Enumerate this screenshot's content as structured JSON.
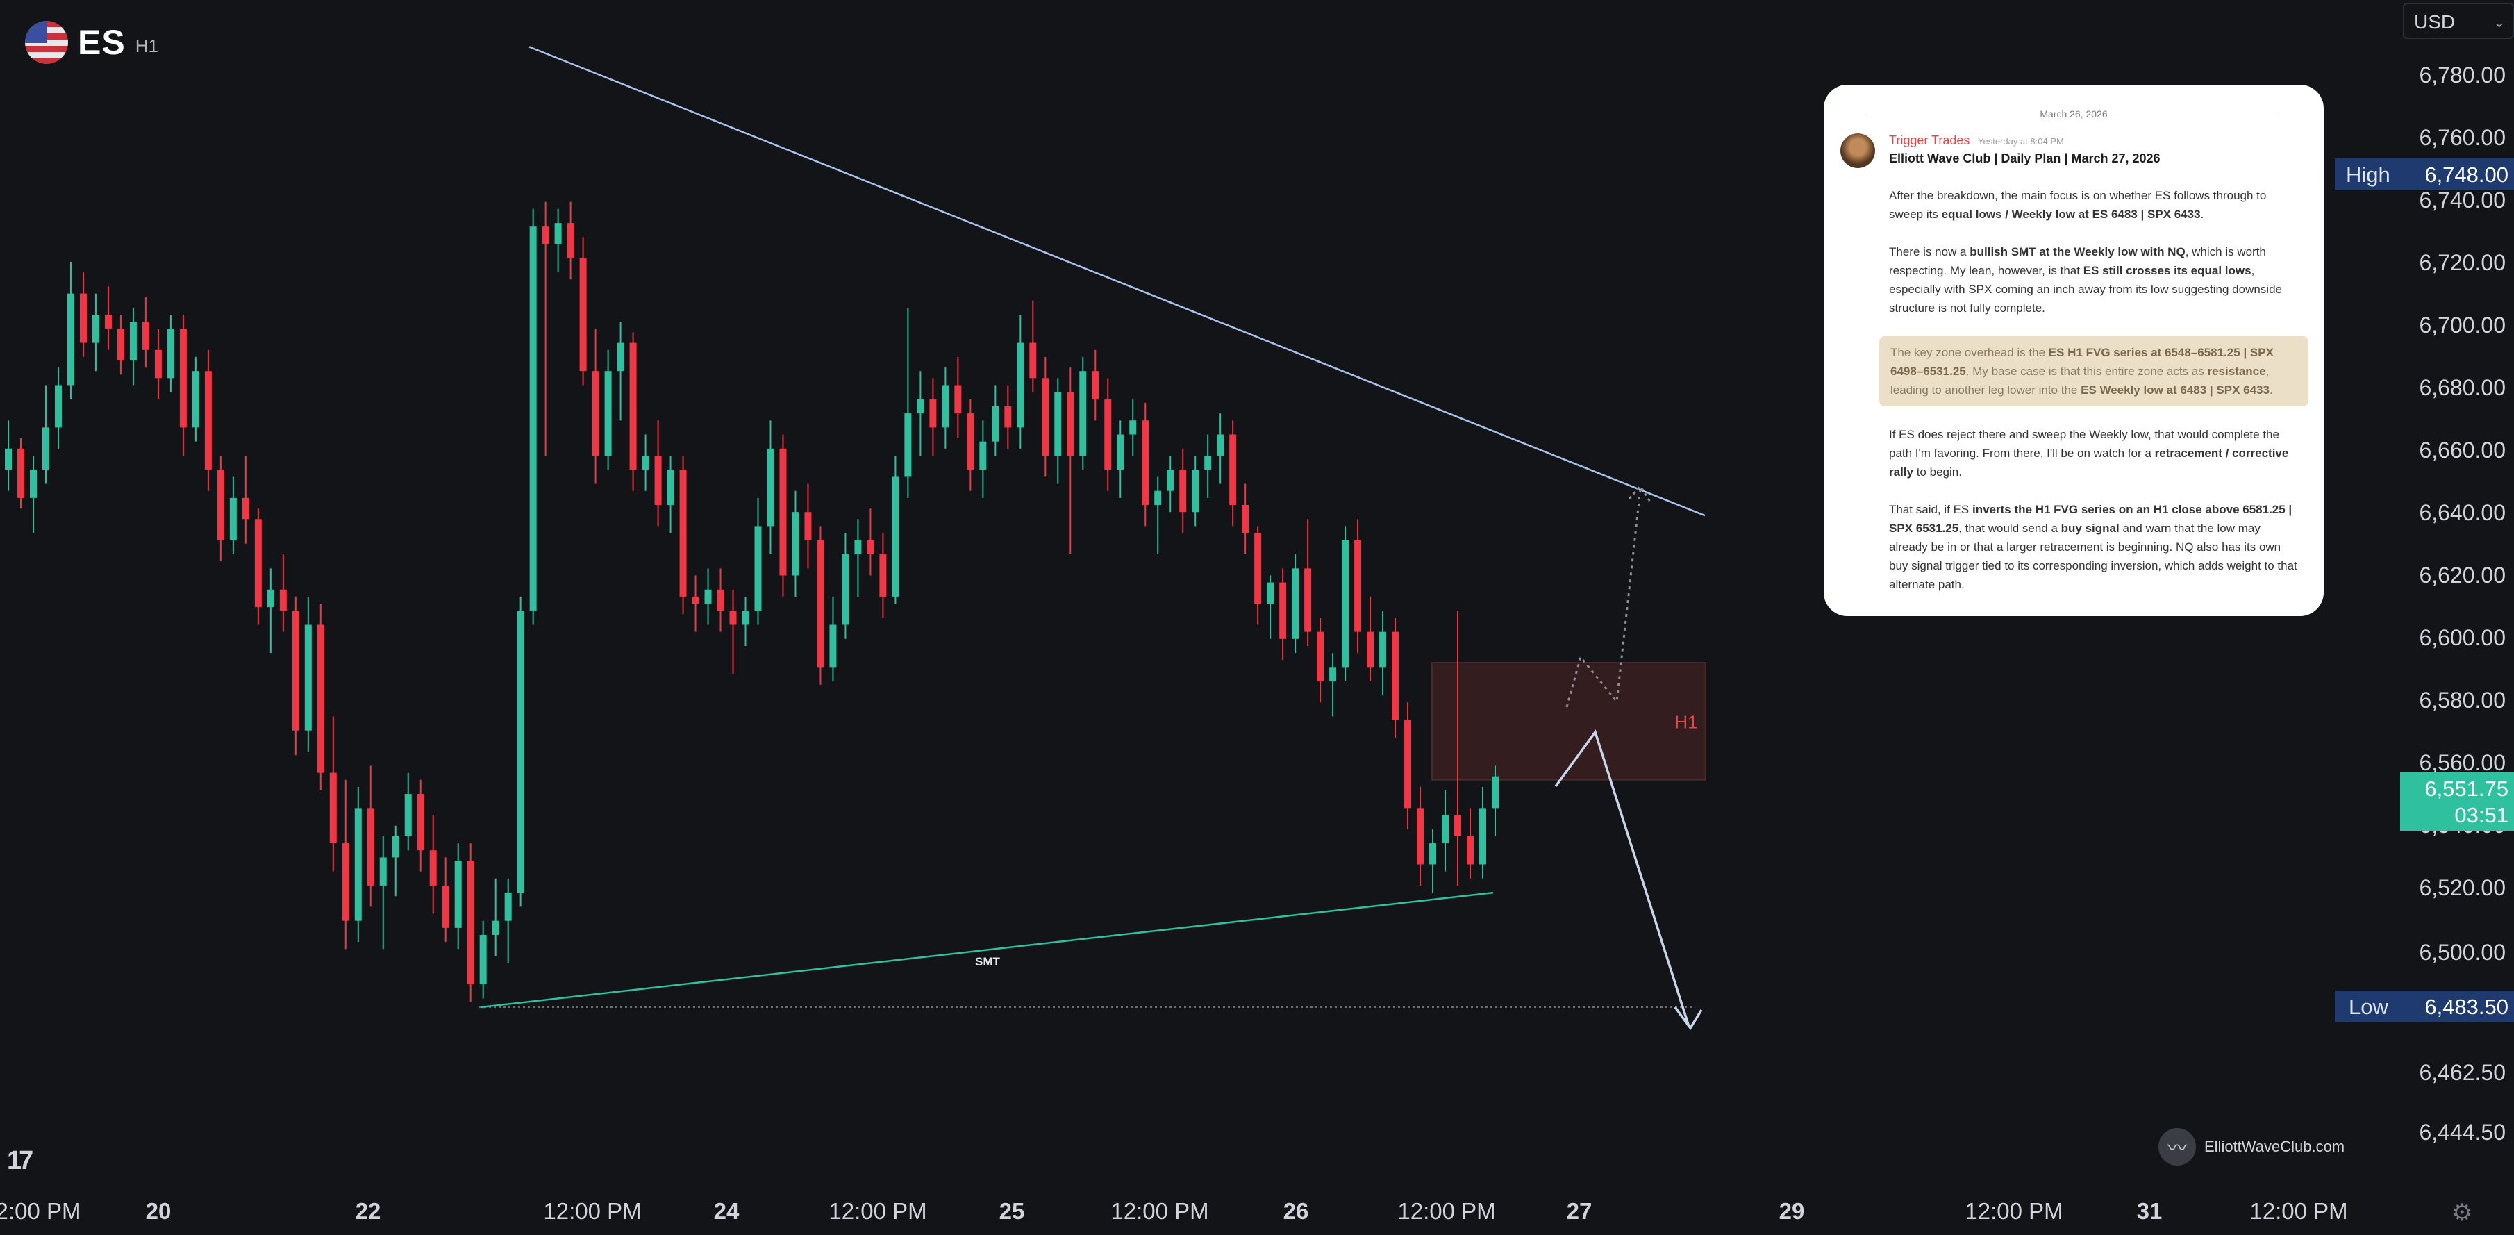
{
  "header": {
    "symbol": "ES",
    "timeframe": "H1"
  },
  "currency": {
    "selected": "USD"
  },
  "colors": {
    "up": "#2fc0a0",
    "down": "#f23645",
    "background": "#131417",
    "axis_text": "#d1d4dc",
    "trendline_upper": "#a9c2ea",
    "trendline_lower": "#2fc0a0",
    "fvg_zone": "#3a1f20",
    "fvg_border": "#5a2c2e",
    "fvg_label": "#e0484c",
    "high_badge": "#1e3a6e",
    "price_badge": "#2fc0a0",
    "projection_path": "#c9d6ea",
    "alt_path": "#8c8f96"
  },
  "chart_data": {
    "type": "candlestick",
    "title": "",
    "y_ticks": [
      "6,780.00",
      "6,760.00",
      "6,740.00",
      "6,720.00",
      "6,700.00",
      "6,680.00",
      "6,660.00",
      "6,640.00",
      "6,620.00",
      "6,600.00",
      "6,580.00",
      "6,560.00",
      "6,540.00",
      "6,520.00",
      "6,500.00",
      "6,462.50",
      "6,444.50"
    ],
    "x_ticks": [
      {
        "label": "2:00 PM",
        "bold": false
      },
      {
        "label": "20",
        "bold": true
      },
      {
        "label": "22",
        "bold": true
      },
      {
        "label": "12:00 PM",
        "bold": false
      },
      {
        "label": "24",
        "bold": true
      },
      {
        "label": "12:00 PM",
        "bold": false
      },
      {
        "label": "25",
        "bold": true
      },
      {
        "label": "12:00 PM",
        "bold": false
      },
      {
        "label": "26",
        "bold": true
      },
      {
        "label": "12:00 PM",
        "bold": false
      },
      {
        "label": "27",
        "bold": true
      },
      {
        "label": "29",
        "bold": true
      },
      {
        "label": "12:00 PM",
        "bold": false
      },
      {
        "label": "31",
        "bold": true
      },
      {
        "label": "12:00 PM",
        "bold": false
      }
    ],
    "ylim": [
      6438,
      6787
    ],
    "price_badges": {
      "high": {
        "label": "High",
        "value": "6,748.00"
      },
      "low": {
        "label": "Low",
        "value": "6,483.50"
      },
      "last": {
        "value": "6,551.75",
        "countdown": "03:51"
      }
    },
    "fvg_zone": {
      "label": "H1",
      "top": 6581.25,
      "bottom": 6548
    },
    "smt_label": "SMT",
    "upper_trendline": {
      "from": {
        "bar": 76,
        "price": 6756
      },
      "to": {
        "bar": 245,
        "price": 6623
      }
    },
    "lower_trendline": {
      "from": {
        "bar": 69,
        "price": 6483.5
      },
      "to": {
        "bar": 214,
        "price": 6516
      }
    },
    "low_line_price": 6483.5,
    "candles": [
      [
        6636,
        6650,
        6630,
        6642
      ],
      [
        6642,
        6645,
        6625,
        6628
      ],
      [
        6628,
        6640,
        6618,
        6636
      ],
      [
        6636,
        6660,
        6632,
        6648
      ],
      [
        6648,
        6665,
        6642,
        6660
      ],
      [
        6660,
        6695,
        6656,
        6686
      ],
      [
        6686,
        6692,
        6668,
        6672
      ],
      [
        6672,
        6686,
        6664,
        6680
      ],
      [
        6680,
        6688,
        6670,
        6676
      ],
      [
        6676,
        6680,
        6663,
        6667
      ],
      [
        6667,
        6682,
        6660,
        6678
      ],
      [
        6678,
        6685,
        6665,
        6670
      ],
      [
        6670,
        6676,
        6656,
        6662
      ],
      [
        6662,
        6680,
        6658,
        6676
      ],
      [
        6676,
        6680,
        6640,
        6648
      ],
      [
        6648,
        6668,
        6644,
        6664
      ],
      [
        6664,
        6670,
        6630,
        6636
      ],
      [
        6636,
        6640,
        6610,
        6616
      ],
      [
        6616,
        6634,
        6612,
        6628
      ],
      [
        6628,
        6640,
        6615,
        6622
      ],
      [
        6622,
        6625,
        6592,
        6597
      ],
      [
        6597,
        6608,
        6584,
        6602
      ],
      [
        6602,
        6612,
        6590,
        6596
      ],
      [
        6596,
        6600,
        6555,
        6562
      ],
      [
        6562,
        6600,
        6556,
        6592
      ],
      [
        6592,
        6598,
        6545,
        6550
      ],
      [
        6550,
        6566,
        6522,
        6530
      ],
      [
        6530,
        6548,
        6500,
        6508
      ],
      [
        6508,
        6546,
        6502,
        6540
      ],
      [
        6540,
        6552,
        6512,
        6518
      ],
      [
        6518,
        6532,
        6500,
        6526
      ],
      [
        6526,
        6535,
        6515,
        6532
      ],
      [
        6532,
        6550,
        6528,
        6544
      ],
      [
        6544,
        6548,
        6522,
        6528
      ],
      [
        6528,
        6538,
        6510,
        6518
      ],
      [
        6518,
        6526,
        6502,
        6506
      ],
      [
        6506,
        6530,
        6500,
        6525
      ],
      [
        6525,
        6530,
        6485,
        6490
      ],
      [
        6490,
        6508,
        6486,
        6504
      ],
      [
        6504,
        6520,
        6498,
        6508
      ],
      [
        6508,
        6520,
        6496,
        6516
      ],
      [
        6516,
        6600,
        6512,
        6596
      ],
      [
        6596,
        6710,
        6592,
        6705
      ],
      [
        6705,
        6712,
        6640,
        6700
      ],
      [
        6700,
        6710,
        6692,
        6706
      ],
      [
        6706,
        6712,
        6690,
        6696
      ],
      [
        6696,
        6702,
        6660,
        6664
      ],
      [
        6664,
        6676,
        6632,
        6640
      ],
      [
        6640,
        6670,
        6636,
        6664
      ],
      [
        6664,
        6678,
        6650,
        6672
      ],
      [
        6672,
        6675,
        6630,
        6636
      ],
      [
        6636,
        6646,
        6630,
        6640
      ],
      [
        6640,
        6650,
        6620,
        6626
      ],
      [
        6626,
        6640,
        6618,
        6636
      ],
      [
        6636,
        6640,
        6595,
        6600
      ],
      [
        6600,
        6606,
        6590,
        6598
      ],
      [
        6598,
        6608,
        6592,
        6602
      ],
      [
        6602,
        6608,
        6590,
        6596
      ],
      [
        6596,
        6602,
        6578,
        6592
      ],
      [
        6592,
        6600,
        6586,
        6596
      ],
      [
        6596,
        6628,
        6592,
        6620
      ],
      [
        6620,
        6650,
        6612,
        6642
      ],
      [
        6642,
        6646,
        6600,
        6606
      ],
      [
        6606,
        6630,
        6600,
        6624
      ],
      [
        6624,
        6632,
        6608,
        6616
      ],
      [
        6616,
        6620,
        6575,
        6580
      ],
      [
        6580,
        6600,
        6576,
        6592
      ],
      [
        6592,
        6618,
        6588,
        6612
      ],
      [
        6612,
        6622,
        6600,
        6616
      ],
      [
        6616,
        6625,
        6606,
        6612
      ],
      [
        6612,
        6618,
        6594,
        6600
      ],
      [
        6600,
        6640,
        6598,
        6634
      ],
      [
        6634,
        6682,
        6628,
        6652
      ],
      [
        6652,
        6664,
        6640,
        6656
      ],
      [
        6656,
        6662,
        6640,
        6648
      ],
      [
        6648,
        6665,
        6642,
        6660
      ],
      [
        6660,
        6668,
        6645,
        6652
      ],
      [
        6652,
        6656,
        6630,
        6636
      ],
      [
        6636,
        6650,
        6628,
        6644
      ],
      [
        6644,
        6660,
        6640,
        6654
      ],
      [
        6654,
        6660,
        6642,
        6648
      ],
      [
        6648,
        6680,
        6642,
        6672
      ],
      [
        6672,
        6684,
        6658,
        6662
      ],
      [
        6662,
        6668,
        6634,
        6640
      ],
      [
        6640,
        6662,
        6632,
        6658
      ],
      [
        6658,
        6665,
        6612,
        6640
      ],
      [
        6640,
        6668,
        6636,
        6664
      ],
      [
        6664,
        6670,
        6650,
        6656
      ],
      [
        6656,
        6662,
        6630,
        6636
      ],
      [
        6636,
        6650,
        6628,
        6646
      ],
      [
        6646,
        6656,
        6640,
        6650
      ],
      [
        6650,
        6655,
        6620,
        6626
      ],
      [
        6626,
        6634,
        6612,
        6630
      ],
      [
        6630,
        6640,
        6624,
        6636
      ],
      [
        6636,
        6642,
        6618,
        6624
      ],
      [
        6624,
        6640,
        6620,
        6636
      ],
      [
        6636,
        6646,
        6628,
        6640
      ],
      [
        6640,
        6652,
        6632,
        6646
      ],
      [
        6646,
        6650,
        6620,
        6626
      ],
      [
        6626,
        6632,
        6612,
        6618
      ],
      [
        6618,
        6620,
        6592,
        6598
      ],
      [
        6598,
        6606,
        6588,
        6604
      ],
      [
        6604,
        6608,
        6582,
        6588
      ],
      [
        6588,
        6612,
        6584,
        6608
      ],
      [
        6608,
        6622,
        6586,
        6590
      ],
      [
        6590,
        6594,
        6570,
        6576
      ],
      [
        6576,
        6584,
        6566,
        6580
      ],
      [
        6580,
        6620,
        6576,
        6616
      ],
      [
        6616,
        6622,
        6584,
        6590
      ],
      [
        6590,
        6600,
        6576,
        6580
      ],
      [
        6580,
        6596,
        6572,
        6590
      ],
      [
        6590,
        6594,
        6560,
        6565
      ],
      [
        6565,
        6570,
        6534,
        6540
      ],
      [
        6540,
        6546,
        6518,
        6524
      ],
      [
        6524,
        6534,
        6516,
        6530
      ],
      [
        6530,
        6545,
        6522,
        6538
      ],
      [
        6538,
        6596,
        6518,
        6532
      ],
      [
        6532,
        6540,
        6520,
        6524
      ],
      [
        6524,
        6546,
        6520,
        6540
      ],
      [
        6540,
        6552,
        6532,
        6549
      ]
    ],
    "candle_span": {
      "first_bar": 0,
      "last_bar": 216
    }
  },
  "annotation_card": {
    "date": "March 26, 2026",
    "author": "Trigger Trades",
    "posted": "Yesterday at 8:04 PM",
    "title": "Elliott Wave Club | Daily Plan | March 27, 2026",
    "p1": [
      "After the breakdown, the main focus is on whether ES follows through to sweep its ",
      "equal lows / Weekly low at ES 6483 | SPX 6433",
      "."
    ],
    "p2": [
      "There is now a ",
      "bullish SMT at the Weekly low with NQ",
      ", which is worth respecting. My lean, however, is that ",
      "ES still crosses its equal lows",
      ", especially with SPX coming an inch away from its low suggesting downside structure is not fully complete."
    ],
    "p3": [
      "The key zone overhead is the ",
      "ES H1 FVG series at 6548–6581.25 | SPX 6498–6531.25",
      ". My base case is that this entire zone acts as ",
      "resistance",
      ", leading to another leg lower into the ",
      "ES Weekly low at 6483 | SPX 6433",
      "."
    ],
    "p4": [
      "If ES does reject there and sweep the Weekly low, that would complete the path I'm favoring. From there, I'll be on watch for a ",
      "retracement / corrective rally",
      " to begin."
    ],
    "p5": [
      "That said, if ES ",
      "inverts the H1 FVG series on an H1 close above 6581.25 | SPX 6531.25",
      ", that would send a ",
      "buy signal",
      " and warn that the low may already be in or that a larger retracement is beginning. NQ also has its own buy signal trigger tied to its corresponding inversion, which adds weight to that alternate path."
    ]
  },
  "watermark": {
    "text": "ElliottWaveClub.com"
  }
}
